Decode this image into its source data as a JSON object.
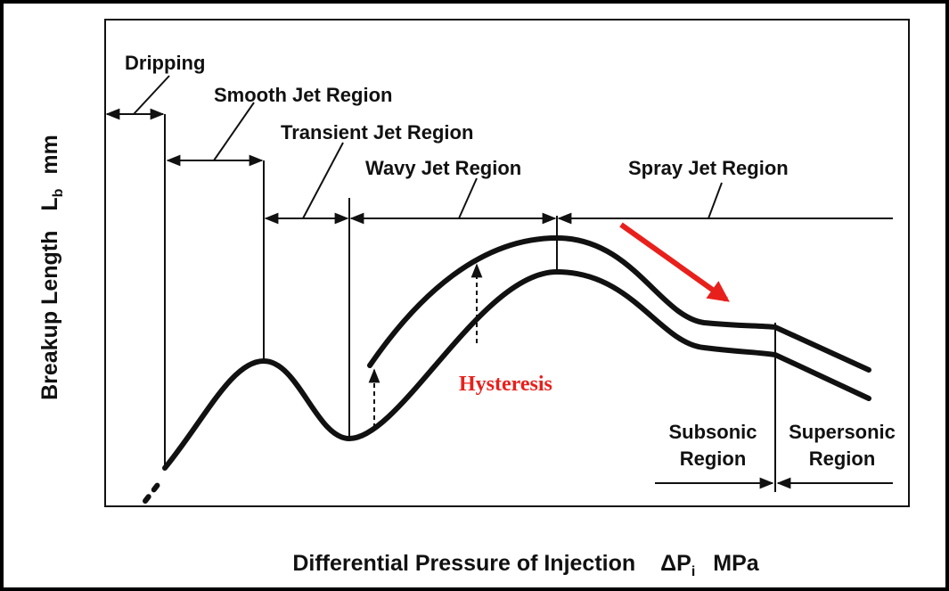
{
  "y_label": {
    "text": "Breakup Length",
    "symbol": "L",
    "subscript": "b",
    "unit": "mm"
  },
  "x_label": {
    "text": "Differential Pressure of Injection",
    "symbol": "ΔP",
    "subscript": "i",
    "unit": "MPa"
  },
  "regions": [
    "Dripping",
    "Smooth Jet Region",
    "Transient Jet Region",
    "Wavy Jet Region",
    "Spray Jet Region"
  ],
  "annotation": "Hysteresis",
  "subsonic": [
    "Subsonic",
    "Region"
  ],
  "supersonic": [
    "Supersonic",
    "Region"
  ]
}
